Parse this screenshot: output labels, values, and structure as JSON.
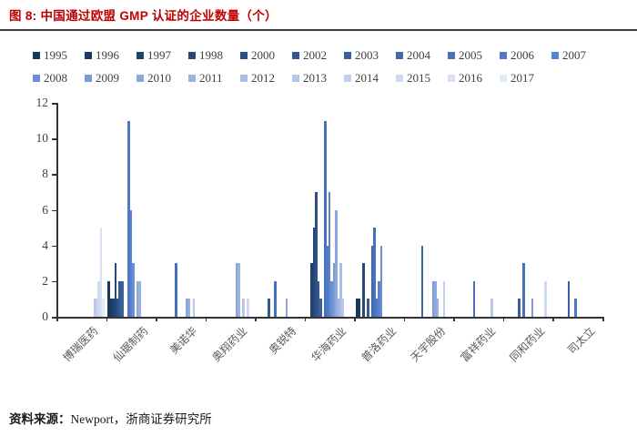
{
  "title": "图 8: 中国通过欧盟 GMP 认证的企业数量（个）",
  "source": {
    "label": "资料来源：",
    "text": "Newport，浙商证券研究所"
  },
  "chart_data": {
    "type": "bar",
    "title": "中国通过欧盟GMP认证的企业数量（个）",
    "grid": false,
    "legend_position": "top",
    "xlabel": "",
    "ylabel": "",
    "ylim": [
      0,
      12
    ],
    "yticks": [
      0,
      2,
      4,
      6,
      8,
      10,
      12
    ],
    "years": [
      {
        "label": "1995",
        "color": "#17375E"
      },
      {
        "label": "1996",
        "color": "#1B3B64"
      },
      {
        "label": "1997",
        "color": "#20416D"
      },
      {
        "label": "1998",
        "color": "#264877"
      },
      {
        "label": "2000",
        "color": "#2C5084"
      },
      {
        "label": "2002",
        "color": "#335992"
      },
      {
        "label": "2003",
        "color": "#3A619F"
      },
      {
        "label": "2004",
        "color": "#4069AC"
      },
      {
        "label": "2005",
        "color": "#4571BE"
      },
      {
        "label": "2006",
        "color": "#4D79C7"
      },
      {
        "label": "2007",
        "color": "#5A81CC"
      },
      {
        "label": "2008",
        "color": "#6C8FD3"
      },
      {
        "label": "2009",
        "color": "#7D9BD8"
      },
      {
        "label": "2010",
        "color": "#8DA7DD"
      },
      {
        "label": "2011",
        "color": "#9CB2E2"
      },
      {
        "label": "2012",
        "color": "#AABDE6"
      },
      {
        "label": "2013",
        "color": "#B7C7EA"
      },
      {
        "label": "2014",
        "color": "#C3D0EE"
      },
      {
        "label": "2015",
        "color": "#CEDAF1"
      },
      {
        "label": "2016",
        "color": "#D9E2F4"
      },
      {
        "label": "2017",
        "color": "#E3EAF8"
      }
    ],
    "categories": [
      "博瑞医药",
      "仙琚制药",
      "美诺华",
      "奥翔药业",
      "奥锐特",
      "华海药业",
      "普洛药业",
      "天宇股份",
      "富祥药业",
      "同和药业",
      "司太立"
    ],
    "series": [
      {
        "company": "博瑞医药",
        "bars": [
          {
            "year": "2013",
            "value": 1
          },
          {
            "year": "2014",
            "value": 1
          },
          {
            "year": "2015",
            "value": 2
          },
          {
            "year": "2016",
            "value": 5
          },
          {
            "year": "2017",
            "value": 1
          }
        ]
      },
      {
        "company": "仙琚制药",
        "bars": [
          {
            "year": "1995",
            "value": 2
          },
          {
            "year": "1996",
            "value": 1
          },
          {
            "year": "1997",
            "value": 1
          },
          {
            "year": "1998",
            "value": 3
          },
          {
            "year": "2000",
            "value": 1
          },
          {
            "year": "2002",
            "value": 2
          },
          {
            "year": "2003",
            "value": 2
          },
          {
            "year": "2006",
            "value": 11
          },
          {
            "year": "2007",
            "value": 6
          },
          {
            "year": "2008",
            "value": 3
          },
          {
            "year": "2010",
            "value": 2
          },
          {
            "year": "2011",
            "value": 2
          }
        ]
      },
      {
        "company": "美诺华",
        "bars": [
          {
            "year": "2005",
            "value": 3
          },
          {
            "year": "2010",
            "value": 1
          },
          {
            "year": "2011",
            "value": 1
          },
          {
            "year": "2013",
            "value": 1
          }
        ]
      },
      {
        "company": "奥翔药业",
        "bars": [
          {
            "year": "2010",
            "value": 3
          },
          {
            "year": "2011",
            "value": 3
          },
          {
            "year": "2013",
            "value": 1
          },
          {
            "year": "2015",
            "value": 1
          }
        ]
      },
      {
        "company": "奥锐特",
        "bars": [
          {
            "year": "2002",
            "value": 1
          },
          {
            "year": "2005",
            "value": 2
          },
          {
            "year": "2010",
            "value": 1
          }
        ]
      },
      {
        "company": "华海药业",
        "bars": [
          {
            "year": "1997",
            "value": 3
          },
          {
            "year": "1998",
            "value": 5
          },
          {
            "year": "2000",
            "value": 7
          },
          {
            "year": "2002",
            "value": 2
          },
          {
            "year": "2003",
            "value": 1
          },
          {
            "year": "2005",
            "value": 11
          },
          {
            "year": "2006",
            "value": 4
          },
          {
            "year": "2007",
            "value": 7
          },
          {
            "year": "2008",
            "value": 2
          },
          {
            "year": "2009",
            "value": 3
          },
          {
            "year": "2010",
            "value": 6
          },
          {
            "year": "2011",
            "value": 1
          },
          {
            "year": "2012",
            "value": 3
          },
          {
            "year": "2013",
            "value": 1
          }
        ]
      },
      {
        "company": "普洛药业",
        "bars": [
          {
            "year": "1995",
            "value": 1
          },
          {
            "year": "1996",
            "value": 1
          },
          {
            "year": "1998",
            "value": 3
          },
          {
            "year": "2002",
            "value": 1
          },
          {
            "year": "2004",
            "value": 4
          },
          {
            "year": "2005",
            "value": 5
          },
          {
            "year": "2006",
            "value": 1
          },
          {
            "year": "2007",
            "value": 2
          },
          {
            "year": "2008",
            "value": 4
          }
        ]
      },
      {
        "company": "天宇股份",
        "bars": [
          {
            "year": "2004",
            "value": 4
          },
          {
            "year": "2009",
            "value": 2
          },
          {
            "year": "2010",
            "value": 2
          },
          {
            "year": "2011",
            "value": 1
          },
          {
            "year": "2014",
            "value": 2
          }
        ]
      },
      {
        "company": "富祥药业",
        "bars": [
          {
            "year": "2005",
            "value": 2
          },
          {
            "year": "2013",
            "value": 1
          }
        ]
      },
      {
        "company": "同和药业",
        "bars": [
          {
            "year": "2003",
            "value": 1
          },
          {
            "year": "2005",
            "value": 3
          },
          {
            "year": "2009",
            "value": 1
          },
          {
            "year": "2015",
            "value": 2
          }
        ]
      },
      {
        "company": "司太立",
        "bars": [
          {
            "year": "2003",
            "value": 2
          },
          {
            "year": "2006",
            "value": 1
          }
        ]
      }
    ]
  }
}
